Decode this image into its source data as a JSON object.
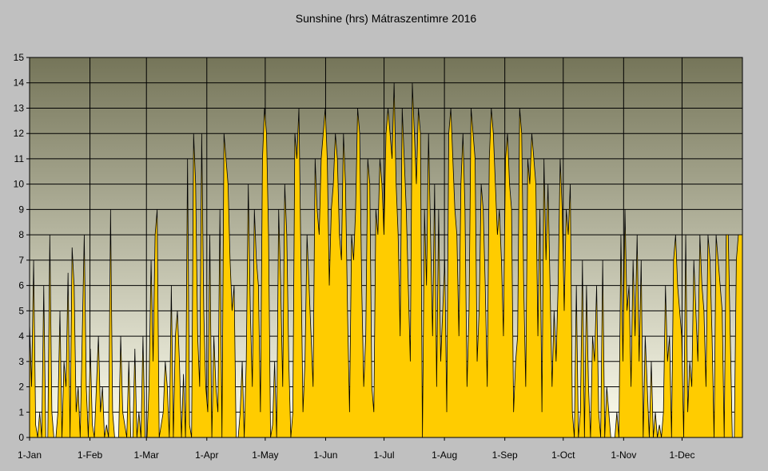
{
  "chart_data": {
    "type": "area",
    "title": "Sunshine (hrs) Mátraszentimre 2016",
    "xlabel": "",
    "ylabel": "",
    "ylim": [
      0,
      15
    ],
    "yticks": [
      0,
      1,
      2,
      3,
      4,
      5,
      6,
      7,
      8,
      9,
      10,
      11,
      12,
      13,
      14,
      15
    ],
    "x_tick_days": [
      0,
      31,
      60,
      91,
      121,
      152,
      182,
      213,
      244,
      274,
      305,
      335
    ],
    "x_tick_labels": [
      "1-Jan",
      "1-Feb",
      "1-Mar",
      "1-Apr",
      "1-May",
      "1-Jun",
      "1-Jul",
      "1-Aug",
      "1-Sep",
      "1-Oct",
      "1-Nov",
      "1-Dec"
    ],
    "days_in_year": 366,
    "grid": true,
    "colors": {
      "area_fill": "#ffcc00",
      "area_stroke": "#000000",
      "grid": "#000000",
      "plot_bg_top": "#757559",
      "plot_bg_bottom": "#fffff0",
      "page_bg": "#c0c0c0"
    },
    "series": [
      {
        "name": "Sunshine (hrs)",
        "values": [
          4.5,
          2.0,
          7.0,
          0.5,
          0,
          1.0,
          0,
          6.0,
          0,
          0,
          8.0,
          1.0,
          0,
          0,
          1.0,
          5.0,
          0,
          3.0,
          2.0,
          6.5,
          0,
          7.5,
          6.0,
          1.0,
          2.0,
          0,
          4.0,
          8.0,
          2.0,
          0,
          3.5,
          0.5,
          0,
          2.0,
          4.0,
          1.0,
          2.0,
          0,
          0.5,
          0,
          9.0,
          1.0,
          0,
          0,
          0,
          4.0,
          1.0,
          0.5,
          0,
          3.0,
          0,
          0,
          3.5,
          0,
          1.0,
          0,
          4.0,
          0,
          0,
          2.0,
          7.0,
          3.0,
          8.0,
          9.0,
          0,
          0.5,
          1.0,
          3.0,
          2.0,
          0,
          6.0,
          0,
          4.0,
          5.0,
          3.0,
          0,
          2.5,
          0,
          11.0,
          0.5,
          0,
          12.0,
          10.0,
          4.0,
          2.0,
          12.0,
          5.0,
          2.0,
          1.0,
          8.0,
          0,
          4.0,
          2.0,
          1.0,
          9.0,
          0,
          12.0,
          11.0,
          10.0,
          7.0,
          5.0,
          6.0,
          0,
          0,
          1.0,
          3.0,
          0,
          3.0,
          10.0,
          5.0,
          2.0,
          9.0,
          7.0,
          6.0,
          1.0,
          11.0,
          13.0,
          12.0,
          8.0,
          0,
          0.5,
          3.0,
          0,
          9.0,
          6.0,
          2.0,
          10.0,
          8.0,
          3.0,
          0,
          1.0,
          12.0,
          11.0,
          13.0,
          7.0,
          1.0,
          3.0,
          8.0,
          6.0,
          4.0,
          2.0,
          11.0,
          9.0,
          8.0,
          11.0,
          12.0,
          13.0,
          11.0,
          6.0,
          9.0,
          10.0,
          12.0,
          11.0,
          8.0,
          7.0,
          12.0,
          10.0,
          5.0,
          1.0,
          8.0,
          7.0,
          9.0,
          13.0,
          12.0,
          6.0,
          2.0,
          4.0,
          11.0,
          10.0,
          2.0,
          1.0,
          9.0,
          8.0,
          11.0,
          10.0,
          8.0,
          12.0,
          13.0,
          12.0,
          11.0,
          14.0,
          10.0,
          8.0,
          4.0,
          13.0,
          11.0,
          9.0,
          6.0,
          3.0,
          14.0,
          12.0,
          10.0,
          13.0,
          12.0,
          0,
          9.0,
          6.0,
          12.0,
          8.0,
          4.0,
          10.0,
          2.0,
          9.0,
          3.0,
          5.0,
          7.0,
          1.0,
          12.0,
          13.0,
          11.0,
          9.0,
          8.0,
          4.0,
          10.0,
          12.0,
          9.0,
          2.0,
          5.0,
          13.0,
          12.0,
          11.0,
          3.0,
          5.0,
          10.0,
          9.0,
          6.0,
          2.0,
          11.0,
          13.0,
          12.0,
          10.0,
          8.0,
          9.0,
          7.0,
          4.0,
          11.0,
          12.0,
          10.0,
          9.0,
          1.0,
          3.0,
          4.0,
          13.0,
          12.0,
          6.0,
          2.0,
          11.0,
          10.0,
          12.0,
          11.0,
          10.0,
          4.0,
          9.0,
          1.0,
          11.0,
          7.0,
          10.0,
          6.0,
          2.0,
          5.0,
          3.0,
          6.0,
          11.0,
          9.0,
          5.0,
          9.0,
          8.0,
          10.0,
          1.0,
          0,
          6.0,
          0,
          1.0,
          7.0,
          0,
          6.0,
          2.0,
          0,
          4.0,
          3.0,
          6.0,
          1.0,
          0,
          7.0,
          0,
          2.0,
          1.0,
          0,
          0,
          0,
          1.0,
          0,
          8.0,
          3.0,
          9.0,
          5.0,
          6.0,
          2.0,
          7.0,
          4.0,
          8.0,
          3.0,
          7.0,
          0,
          4.0,
          2.0,
          0,
          3.0,
          0,
          1.0,
          0,
          0.5,
          0,
          1.0,
          6.0,
          3.0,
          4.0,
          0,
          7.0,
          8.0,
          6.0,
          5.0,
          4.0,
          0,
          8.0,
          1.0,
          3.0,
          2.0,
          7.0,
          5.0,
          3.0,
          8.0,
          6.0,
          5.0,
          2.0,
          8.0,
          7.0,
          4.0,
          0,
          8.0,
          7.0,
          6.0,
          5.0,
          0,
          8.0,
          8.0,
          4.0,
          0,
          0,
          7.0,
          8.0,
          8.0,
          8.0
        ]
      }
    ]
  }
}
